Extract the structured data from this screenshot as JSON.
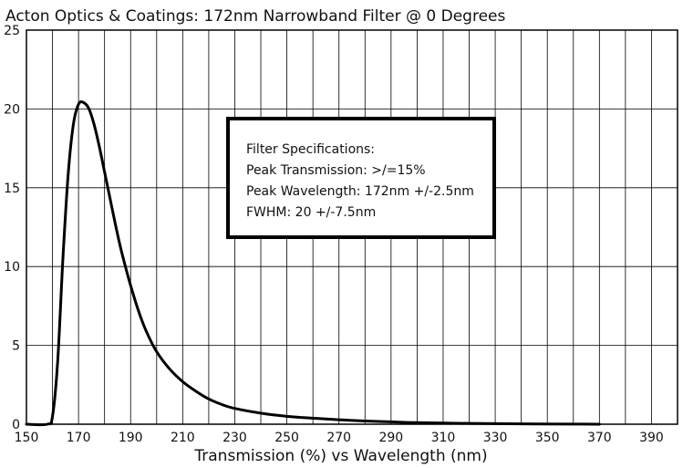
{
  "chart_data": {
    "type": "line",
    "title": "Acton Optics & Coatings: 172nm Narrowband Filter @ 0 Degrees",
    "xlabel": "Transmission (%) vs Wavelength (nm)",
    "ylabel": "",
    "xlim": [
      150,
      400
    ],
    "ylim": [
      0,
      25
    ],
    "xticks": [
      "150",
      "170",
      "190",
      "210",
      "230",
      "250",
      "270",
      "290",
      "310",
      "330",
      "350",
      "370",
      "390"
    ],
    "yticks": [
      "0",
      "5",
      "10",
      "15",
      "20",
      "25"
    ],
    "grid": true,
    "series": [
      {
        "x": [
          150,
          158,
          160,
          162,
          164,
          166,
          168,
          170,
          172,
          174,
          176,
          178,
          180,
          182,
          184,
          186,
          188,
          190,
          193,
          196,
          200,
          205,
          210,
          215,
          220,
          225,
          230,
          240,
          250,
          260,
          270,
          280,
          290,
          300,
          320,
          340,
          360,
          370
        ],
        "y": [
          0,
          0,
          0.5,
          4,
          10.5,
          15.8,
          19,
          20.3,
          20.4,
          20,
          19,
          17.6,
          16,
          14.4,
          12.8,
          11.3,
          10,
          8.8,
          7.2,
          5.9,
          4.6,
          3.5,
          2.7,
          2.1,
          1.6,
          1.25,
          1.0,
          0.7,
          0.5,
          0.38,
          0.28,
          0.2,
          0.15,
          0.1,
          0.05,
          0.02,
          0.01,
          0
        ]
      }
    ],
    "annotation": {
      "lines": [
        "Filter Specifications:",
        "Peak Transmission: >/=15%",
        "Peak Wavelength: 172nm +/-2.5nm",
        "FWHM: 20 +/-7.5nm"
      ]
    }
  }
}
